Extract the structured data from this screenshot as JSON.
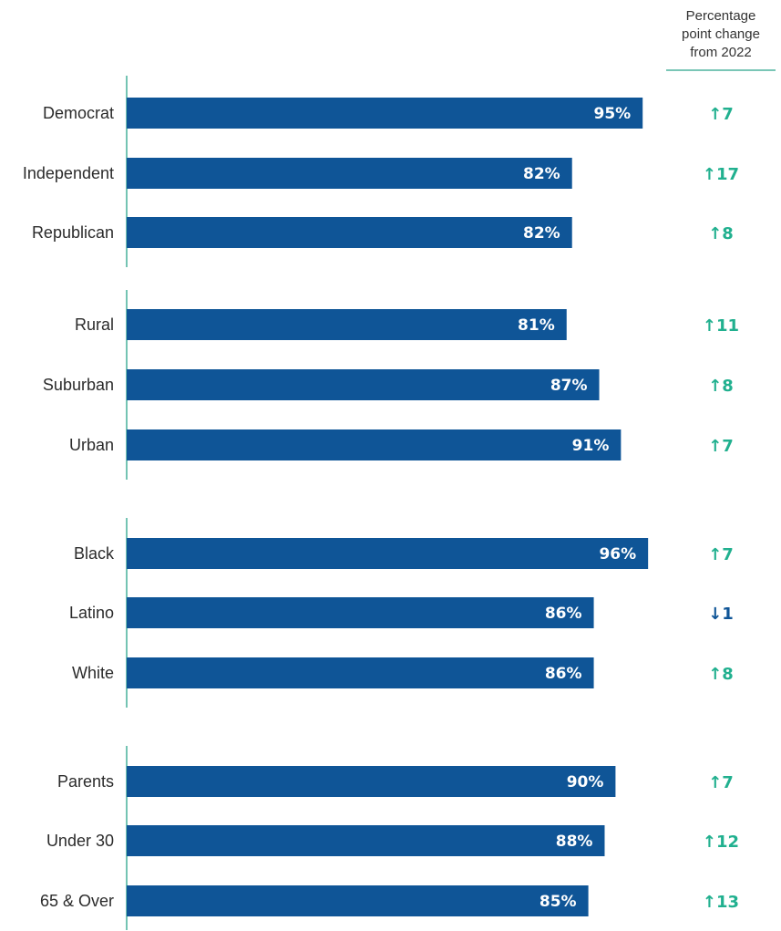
{
  "change_header": [
    "Percentage",
    "point change",
    "from 2022"
  ],
  "colors": {
    "bar": "#0f5597",
    "up": "#21b08f",
    "down": "#0f5597",
    "axis": "#2aa58a",
    "label": "#2b2b2b",
    "value_text": "#ffffff"
  },
  "chart_data": {
    "type": "bar",
    "orientation": "horizontal",
    "groups": [
      {
        "categories": [
          "Democrat",
          "Independent",
          "Republican"
        ],
        "values": [
          95,
          82,
          82
        ],
        "changes": [
          7,
          17,
          8
        ]
      },
      {
        "categories": [
          "Rural",
          "Suburban",
          "Urban"
        ],
        "values": [
          81,
          87,
          91
        ],
        "changes": [
          11,
          8,
          7
        ]
      },
      {
        "categories": [
          "Black",
          "Latino",
          "White"
        ],
        "values": [
          96,
          86,
          86
        ],
        "changes": [
          7,
          -1,
          8
        ]
      },
      {
        "categories": [
          "Parents",
          "Under 30",
          "65 & Over"
        ],
        "values": [
          90,
          88,
          85
        ],
        "changes": [
          7,
          12,
          13
        ]
      }
    ],
    "value_suffix": "%",
    "xlim": [
      0,
      100
    ],
    "grid": false,
    "legend": "none"
  }
}
